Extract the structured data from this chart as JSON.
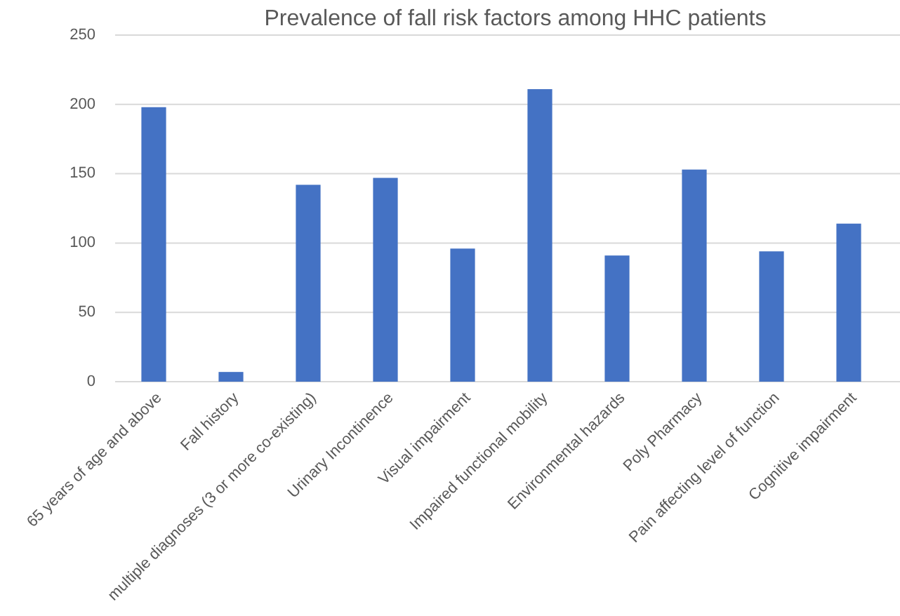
{
  "chart_data": {
    "type": "bar",
    "title": "Prevalence of fall risk factors among HHC patients",
    "categories": [
      "65 years of age and above",
      "Fall history",
      "multiple diagnoses (3 or more co-existing)",
      "Urinary Incontinence",
      "Visual impairment",
      "Impaired functional mobility",
      "Environmental hazards",
      "Poly Pharmacy",
      "Pain affecting level of function",
      "Cognitive impairment"
    ],
    "values": [
      198,
      7,
      142,
      147,
      96,
      211,
      91,
      153,
      94,
      114
    ],
    "color": "#4472c4",
    "ylim": [
      0,
      250
    ],
    "yticks": [
      0,
      50,
      100,
      150,
      200,
      250
    ],
    "grid": "y"
  }
}
